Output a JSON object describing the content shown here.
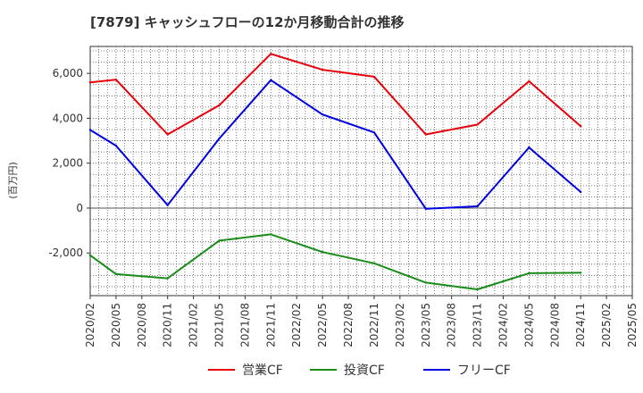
{
  "chart_data": {
    "type": "line",
    "title": "[7879]  キャッシュフローの12か月移動合計の推移",
    "ylabel": "(百万円)",
    "xlabel": "",
    "ylim": [
      -3900,
      7200
    ],
    "yticks": [
      -2000,
      0,
      2000,
      4000,
      6000
    ],
    "ytick_labels": [
      "-2,000",
      "0",
      "2,000",
      "4,000",
      "6,000"
    ],
    "categories": [
      "2020/02",
      "2020/05",
      "2020/08",
      "2020/11",
      "2021/02",
      "2021/05",
      "2021/08",
      "2021/11",
      "2022/02",
      "2022/05",
      "2022/08",
      "2022/11",
      "2023/02",
      "2023/05",
      "2023/08",
      "2023/11",
      "2024/02",
      "2024/05",
      "2024/08",
      "2024/11",
      "2025/02",
      "2025/05"
    ],
    "grid": true,
    "series": [
      {
        "name": "営業CF",
        "color": "#e8000b",
        "values": [
          5600,
          5720,
          null,
          3280,
          null,
          4580,
          null,
          6870,
          null,
          6160,
          null,
          5850,
          null,
          3280,
          null,
          3720,
          null,
          5650,
          null,
          3650,
          null,
          null
        ]
      },
      {
        "name": "投資CF",
        "color": "#1a8c1a",
        "values": [
          -2100,
          -2940,
          null,
          -3130,
          null,
          -1450,
          null,
          -1170,
          null,
          -1960,
          null,
          -2460,
          null,
          -3320,
          null,
          -3620,
          null,
          -2900,
          null,
          -2880,
          null,
          null
        ]
      },
      {
        "name": "フリーCF",
        "color": "#0000e0",
        "values": [
          3480,
          2780,
          null,
          130,
          null,
          3100,
          null,
          5700,
          null,
          4170,
          null,
          3370,
          null,
          -30,
          null,
          80,
          null,
          2700,
          null,
          720,
          null,
          null
        ]
      }
    ],
    "legend_position": "bottom"
  }
}
